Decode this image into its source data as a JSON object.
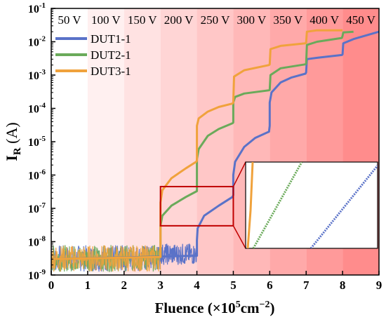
{
  "chart_data": {
    "type": "line",
    "xlabel": "Fluence (×10",
    "xlabel_sup": "5",
    "xlabel_unit": "cm",
    "xlabel_unit_sup": "−2",
    "xlabel_close": ")",
    "ylabel_main": "I",
    "ylabel_sub": "R",
    "ylabel_unit": " (A)",
    "xlim": [
      0,
      9
    ],
    "ylim_log10": [
      -9,
      -1
    ],
    "y_scale": "log",
    "x_ticks": [
      "0",
      "1",
      "2",
      "3",
      "4",
      "5",
      "6",
      "7",
      "8",
      "9"
    ],
    "y_ticks": [
      {
        "base": "10",
        "exp": "-9"
      },
      {
        "base": "10",
        "exp": "-8"
      },
      {
        "base": "10",
        "exp": "-7"
      },
      {
        "base": "10",
        "exp": "-6"
      },
      {
        "base": "10",
        "exp": "-5"
      },
      {
        "base": "10",
        "exp": "-4"
      },
      {
        "base": "10",
        "exp": "-3"
      },
      {
        "base": "10",
        "exp": "-2"
      },
      {
        "base": "10",
        "exp": "-1"
      }
    ],
    "voltage_bands": [
      "50 V",
      "100 V",
      "150 V",
      "200 V",
      "250 V",
      "300 V",
      "350 V",
      "400 V",
      "450 V"
    ],
    "band_colors": [
      "#ffffff",
      "#fff0f0",
      "#ffe2e2",
      "#ffd5d5",
      "#ffc7c7",
      "#ffb8b8",
      "#ffa9a9",
      "#ff9a9a",
      "#ff8c8c"
    ],
    "legend_position": "upper-left",
    "series": [
      {
        "name": "DUT1-1",
        "color": "#5a72c8",
        "points": [
          [
            0,
            3e-09
          ],
          [
            4.0,
            3.8e-09
          ],
          [
            4.0,
            1.1e-08
          ],
          [
            4.02,
            2.5e-08
          ],
          [
            4.2,
            6e-08
          ],
          [
            4.6,
            1.2e-07
          ],
          [
            4.98,
            2.2e-07
          ],
          [
            5.0,
            2.5e-07
          ],
          [
            5.0,
            1e-06
          ],
          [
            5.05,
            2.5e-06
          ],
          [
            5.3,
            7e-06
          ],
          [
            5.6,
            1.3e-05
          ],
          [
            5.98,
            2e-05
          ],
          [
            6.0,
            3e-05
          ],
          [
            6.0,
            0.00015
          ],
          [
            6.05,
            0.0003
          ],
          [
            6.3,
            0.0006
          ],
          [
            6.6,
            0.00085
          ],
          [
            6.98,
            0.0011
          ],
          [
            7.0,
            0.0012
          ],
          [
            7.02,
            0.003
          ],
          [
            7.3,
            0.0033
          ],
          [
            7.98,
            0.004
          ],
          [
            8.0,
            0.0042
          ],
          [
            8.02,
            0.009
          ],
          [
            8.3,
            0.012
          ],
          [
            9.0,
            0.02
          ]
        ]
      },
      {
        "name": "DUT2-1",
        "color": "#6aaa5a",
        "points": [
          [
            0,
            3e-09
          ],
          [
            3.0,
            3.5e-09
          ],
          [
            3.0,
            3e-08
          ],
          [
            3.05,
            6e-08
          ],
          [
            3.3,
            1.2e-07
          ],
          [
            3.7,
            2.2e-07
          ],
          [
            3.98,
            3.2e-07
          ],
          [
            4.0,
            3.3e-07
          ],
          [
            4.0,
            3e-06
          ],
          [
            4.05,
            6e-06
          ],
          [
            4.3,
            1.5e-05
          ],
          [
            4.6,
            2.4e-05
          ],
          [
            4.98,
            3.6e-05
          ],
          [
            5.0,
            3.8e-05
          ],
          [
            5.0,
            0.00015
          ],
          [
            5.05,
            0.00022
          ],
          [
            5.3,
            0.00028
          ],
          [
            5.98,
            0.00035
          ],
          [
            6.0,
            0.00036
          ],
          [
            6.02,
            0.001
          ],
          [
            6.3,
            0.0016
          ],
          [
            6.98,
            0.0021
          ],
          [
            7.0,
            0.0022
          ],
          [
            7.02,
            0.008
          ],
          [
            7.3,
            0.01
          ],
          [
            7.98,
            0.013
          ],
          [
            8.0,
            0.015
          ],
          [
            8.02,
            0.019
          ],
          [
            8.3,
            0.02
          ]
        ]
      },
      {
        "name": "DUT3-1",
        "color": "#f0a23c",
        "points": [
          [
            0,
            3e-09
          ],
          [
            3.0,
            3.5e-09
          ],
          [
            3.0,
            1.5e-07
          ],
          [
            3.05,
            3.5e-07
          ],
          [
            3.3,
            8e-07
          ],
          [
            3.7,
            1.6e-06
          ],
          [
            3.98,
            2.5e-06
          ],
          [
            4.0,
            2.7e-06
          ],
          [
            4.0,
            3e-05
          ],
          [
            4.05,
            5e-05
          ],
          [
            4.3,
            8e-05
          ],
          [
            4.6,
            0.00011
          ],
          [
            4.98,
            0.00014
          ],
          [
            5.0,
            0.00015
          ],
          [
            5.02,
            0.0009
          ],
          [
            5.3,
            0.0014
          ],
          [
            5.98,
            0.002
          ],
          [
            6.0,
            0.0021
          ],
          [
            6.02,
            0.006
          ],
          [
            6.3,
            0.0075
          ],
          [
            6.98,
            0.009
          ],
          [
            7.0,
            0.0095
          ],
          [
            7.02,
            0.02
          ],
          [
            7.3,
            0.022
          ],
          [
            8.0,
            0.022
          ]
        ]
      }
    ],
    "noise_region": {
      "x_range": [
        0,
        3
      ],
      "y_range_log10": [
        -8.9,
        -8.1
      ]
    },
    "zoom_box": {
      "x_range": [
        3.0,
        5.0
      ],
      "y_range": [
        3e-08,
        4.5e-07
      ],
      "color": "#c00000"
    }
  }
}
